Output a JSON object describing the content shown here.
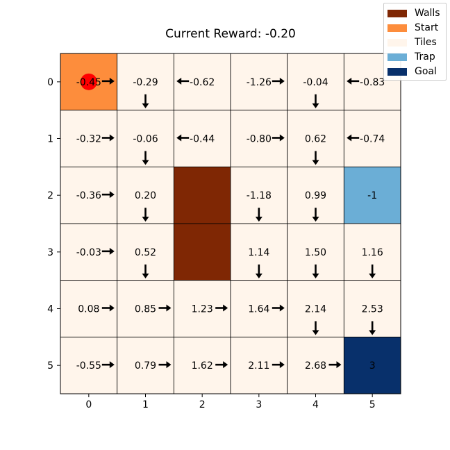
{
  "title": "Current Reward: -0.20",
  "colors": {
    "walls": "#7f2704",
    "start": "#fd8d3c",
    "tiles": "#fff5eb",
    "trap": "#6baed6",
    "goal": "#08306b",
    "agent": "#ff0000"
  },
  "legend": [
    {
      "label": "Walls",
      "type": "walls"
    },
    {
      "label": "Start",
      "type": "start"
    },
    {
      "label": "Tiles",
      "type": "tiles"
    },
    {
      "label": "Trap",
      "type": "trap"
    },
    {
      "label": "Goal",
      "type": "goal"
    }
  ],
  "axes": {
    "x_ticks": [
      "0",
      "1",
      "2",
      "3",
      "4",
      "5"
    ],
    "y_ticks": [
      "0",
      "1",
      "2",
      "3",
      "4",
      "5"
    ]
  },
  "agent": {
    "row": 0,
    "col": 0
  },
  "grid": [
    [
      {
        "type": "start",
        "value": "-0.45",
        "arrow": "right"
      },
      {
        "type": "tiles",
        "value": "-0.29",
        "arrow": "down"
      },
      {
        "type": "tiles",
        "value": "-0.62",
        "arrow": "left"
      },
      {
        "type": "tiles",
        "value": "-1.26",
        "arrow": "right"
      },
      {
        "type": "tiles",
        "value": "-0.04",
        "arrow": "down"
      },
      {
        "type": "tiles",
        "value": "-0.83",
        "arrow": "left"
      }
    ],
    [
      {
        "type": "tiles",
        "value": "-0.32",
        "arrow": "right"
      },
      {
        "type": "tiles",
        "value": "-0.06",
        "arrow": "down"
      },
      {
        "type": "tiles",
        "value": "-0.44",
        "arrow": "left"
      },
      {
        "type": "tiles",
        "value": "-0.80",
        "arrow": "right"
      },
      {
        "type": "tiles",
        "value": "0.62",
        "arrow": "down"
      },
      {
        "type": "tiles",
        "value": "-0.74",
        "arrow": "left"
      }
    ],
    [
      {
        "type": "tiles",
        "value": "-0.36",
        "arrow": "right"
      },
      {
        "type": "tiles",
        "value": "0.20",
        "arrow": "down"
      },
      {
        "type": "walls",
        "value": "",
        "arrow": ""
      },
      {
        "type": "tiles",
        "value": "-1.18",
        "arrow": "down"
      },
      {
        "type": "tiles",
        "value": "0.99",
        "arrow": "down"
      },
      {
        "type": "trap",
        "value": "-1",
        "arrow": ""
      }
    ],
    [
      {
        "type": "tiles",
        "value": "-0.03",
        "arrow": "right"
      },
      {
        "type": "tiles",
        "value": "0.52",
        "arrow": "down"
      },
      {
        "type": "walls",
        "value": "",
        "arrow": ""
      },
      {
        "type": "tiles",
        "value": "1.14",
        "arrow": "down"
      },
      {
        "type": "tiles",
        "value": "1.50",
        "arrow": "down"
      },
      {
        "type": "tiles",
        "value": "1.16",
        "arrow": "down"
      }
    ],
    [
      {
        "type": "tiles",
        "value": "0.08",
        "arrow": "right"
      },
      {
        "type": "tiles",
        "value": "0.85",
        "arrow": "right"
      },
      {
        "type": "tiles",
        "value": "1.23",
        "arrow": "right"
      },
      {
        "type": "tiles",
        "value": "1.64",
        "arrow": "right"
      },
      {
        "type": "tiles",
        "value": "2.14",
        "arrow": "down"
      },
      {
        "type": "tiles",
        "value": "2.53",
        "arrow": "down"
      }
    ],
    [
      {
        "type": "tiles",
        "value": "-0.55",
        "arrow": "right"
      },
      {
        "type": "tiles",
        "value": "0.79",
        "arrow": "right"
      },
      {
        "type": "tiles",
        "value": "1.62",
        "arrow": "right"
      },
      {
        "type": "tiles",
        "value": "2.11",
        "arrow": "right"
      },
      {
        "type": "tiles",
        "value": "2.68",
        "arrow": "right"
      },
      {
        "type": "goal",
        "value": "3",
        "arrow": ""
      }
    ]
  ]
}
